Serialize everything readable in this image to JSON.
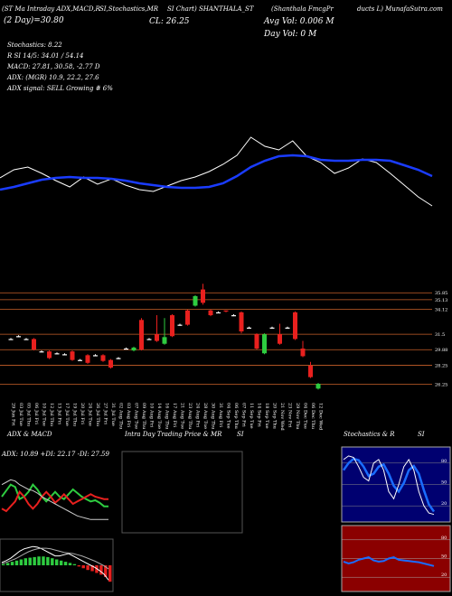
{
  "header": {
    "lines": [
      "(ST Ma Intraday ADX,MACD,R",
      "SI,Stochastics,MR",
      "SI Chart) SHANTHALA_ST",
      "(Shanthala FmcgPr",
      "ducts L) MunafaSutra.com"
    ],
    "close": "CL: 26.25",
    "two_day": "(2 Day)=30.80",
    "avg_vol": "Avg Vol: 0.006  M",
    "day_vol": "Day Vol: 0  M",
    "stats": [
      "Stochastics: 8.22",
      "R    SI 14/5: 34.01 / 54.14",
      "MACD: 27.81, 30.58, -2.77 D",
      "ADX:           (MGR) 10.9, 22.2, 27.6",
      "ADX  signal: SELL Growing # 6%"
    ]
  },
  "ma_chart": {
    "ylim": [
      26,
      37
    ],
    "white": [
      30.73,
      31.72,
      32.05,
      31.28,
      30.4,
      29.63,
      30.84,
      29.96,
      30.62,
      29.85,
      29.3,
      29.08,
      29.74,
      30.4,
      30.84,
      31.5,
      32.38,
      33.48,
      35.68,
      34.58,
      34.14,
      35.24,
      33.37,
      32.6,
      31.28,
      31.94,
      33.04,
      32.6,
      31.28,
      29.85,
      28.42,
      27.32
    ],
    "blue": [
      29.3,
      29.63,
      30.07,
      30.51,
      30.73,
      30.84,
      30.73,
      30.73,
      30.62,
      30.4,
      30.07,
      29.85,
      29.63,
      29.52,
      29.52,
      29.63,
      30.07,
      30.95,
      32.05,
      32.82,
      33.37,
      33.48,
      33.37,
      32.93,
      32.82,
      32.82,
      32.93,
      32.93,
      32.82,
      32.27,
      31.72,
      30.95
    ]
  },
  "candles": {
    "ylim": [
      24.5,
      37.2
    ],
    "levels": [
      {
        "value": 35.85,
        "label": "35.85"
      },
      {
        "value": 35.13,
        "label": "35.13"
      },
      34.12,
      31.5,
      29.88,
      28.25,
      26.25
    ],
    "open": [
      31.0,
      31.3,
      31.0,
      31.0,
      29.7,
      29.7,
      29.5,
      29.4,
      29.7,
      28.8,
      29.3,
      29.3,
      29.3,
      28.8,
      29.0,
      30.0,
      29.8,
      33.0,
      31.0,
      31.5,
      30.5,
      33.5,
      32.5,
      34.0,
      34.5,
      36.2,
      34.0,
      33.8,
      34.0,
      33.5,
      33.8,
      32.2,
      31.5,
      29.5,
      32.2,
      31.5,
      32.2,
      33.8,
      30.0,
      28.2,
      25.8
    ],
    "high": [
      31.1,
      31.4,
      31.1,
      31.1,
      29.8,
      29.8,
      29.6,
      29.5,
      29.8,
      28.9,
      29.4,
      29.4,
      29.4,
      28.9,
      29.1,
      30.1,
      30.2,
      33.2,
      31.1,
      33.5,
      33.2,
      33.6,
      32.6,
      34.1,
      35.6,
      36.8,
      34.1,
      33.9,
      34.0,
      33.6,
      33.9,
      32.3,
      31.6,
      31.6,
      32.3,
      32.6,
      32.3,
      33.9,
      30.8,
      28.6,
      26.4
    ],
    "low": [
      30.9,
      31.2,
      30.9,
      29.8,
      29.6,
      28.9,
      29.4,
      29.3,
      28.7,
      28.7,
      28.4,
      29.2,
      28.6,
      27.9,
      28.9,
      29.9,
      29.7,
      29.8,
      30.9,
      30.7,
      30.4,
      31.2,
      32.4,
      32.4,
      34.4,
      34.6,
      33.4,
      33.7,
      33.8,
      33.4,
      31.6,
      32.1,
      29.9,
      29.4,
      32.1,
      30.4,
      32.1,
      30.9,
      29.1,
      26.9,
      25.7
    ],
    "close": [
      31.0,
      31.3,
      31.0,
      29.9,
      29.7,
      29.0,
      29.5,
      29.4,
      28.8,
      28.8,
      28.5,
      29.3,
      28.7,
      28.0,
      29.0,
      30.0,
      30.1,
      29.9,
      31.0,
      30.8,
      31.2,
      31.3,
      32.5,
      32.5,
      35.5,
      34.8,
      33.5,
      33.8,
      33.9,
      33.5,
      31.8,
      32.2,
      30.0,
      31.5,
      32.2,
      30.5,
      32.2,
      31.0,
      29.2,
      27.0,
      26.3
    ],
    "dates": [
      "29 Jun Fri",
      "03 Jul Tue",
      "05 Jul Thu",
      "06 Jul Fri",
      "10 Jul Tue",
      "12 Jul Thu",
      "13 Jul Fri",
      "17 Jul Tue",
      "19 Jul Thu",
      "20 Jul Fri",
      "24 Jul Tue",
      "26 Jul Thu",
      "27 Jul Fri",
      "31 Jul Tue",
      "02 Aug Thu",
      "03 Aug Fri",
      "07 Aug Tue",
      "09 Aug Thu",
      "10 Aug Fri",
      "14 Aug Tue",
      "16 Aug Thu",
      "17 Aug Fri",
      "21 Aug Tue",
      "23 Aug Thu",
      "24 Aug Fri",
      "28 Aug Tue",
      "30 Aug Thu",
      "31 Aug Fri",
      "04 Sep Tue",
      "06 Sep Thu",
      "07 Sep Fri",
      "11 Sep Tue",
      "14 Sep Fri",
      "18 Sep Tue",
      "20 Sep Thu",
      "21 Nov Wed",
      "23 Nov Fri",
      "29 Nov Thu",
      "04 Dec Tue",
      "06 Dec Thu",
      "12 Dec Wed"
    ]
  },
  "adx": {
    "title": "ADX  & MACD",
    "label": "ADX: 10.89  +DI: 22.17  -DI: 27.59",
    "ylim": [
      0,
      60
    ],
    "plus_di": [
      30,
      35,
      40,
      38,
      28,
      30,
      34,
      40,
      36,
      30,
      26,
      30,
      34,
      30,
      28,
      32,
      36,
      33,
      30,
      28,
      26,
      27,
      25,
      22,
      22
    ],
    "minus_di": [
      20,
      18,
      22,
      26,
      34,
      30,
      24,
      20,
      24,
      30,
      34,
      30,
      25,
      28,
      32,
      28,
      24,
      26,
      28,
      30,
      32,
      30,
      29,
      28,
      28
    ],
    "adx": [
      40,
      42,
      44,
      43,
      40,
      38,
      36,
      35,
      33,
      30,
      28,
      26,
      24,
      22,
      20,
      18,
      16,
      14,
      13,
      12,
      11,
      11,
      11,
      11,
      11
    ]
  },
  "macd": {
    "ylim": [
      -4,
      4
    ],
    "hist": [
      0.2,
      0.4,
      0.6,
      0.8,
      1.0,
      1.2,
      1.3,
      1.4,
      1.5,
      1.5,
      1.4,
      1.2,
      1.0,
      0.8,
      0.6,
      0.4,
      0.2,
      -0.2,
      -0.5,
      -0.8,
      -1.0,
      -1.3,
      -1.6,
      -2.0,
      -2.8
    ],
    "macd": [
      0.5,
      0.8,
      1.2,
      1.8,
      2.4,
      2.8,
      3.0,
      3.2,
      3.1,
      2.8,
      2.4,
      2.0,
      1.6,
      1.6,
      1.8,
      2.0,
      1.6,
      1.2,
      0.8,
      0.4,
      0.0,
      -0.4,
      -0.9,
      -1.5,
      -2.5
    ],
    "signal": [
      0.3,
      0.5,
      0.8,
      1.1,
      1.5,
      1.9,
      2.3,
      2.6,
      2.8,
      2.9,
      2.9,
      2.8,
      2.6,
      2.4,
      2.2,
      2.1,
      2.0,
      1.8,
      1.6,
      1.3,
      1.0,
      0.7,
      0.3,
      -0.1,
      -0.6
    ]
  },
  "middle": {
    "title": "Intra  Day Trading Price  & MR",
    "title2": "SI"
  },
  "stoch": {
    "title": "Stochastics  & R",
    "title2": "SI",
    "ylim": [
      0,
      100
    ],
    "ticks": [
      80,
      50,
      20
    ],
    "k": [
      85,
      90,
      88,
      75,
      60,
      55,
      80,
      85,
      70,
      40,
      30,
      50,
      75,
      85,
      70,
      40,
      20,
      10,
      8
    ],
    "d": [
      70,
      80,
      86,
      84,
      75,
      62,
      65,
      75,
      78,
      65,
      48,
      40,
      52,
      70,
      76,
      65,
      42,
      22,
      12
    ]
  },
  "rsi": {
    "ylim": [
      0,
      100
    ],
    "ticks": [
      80,
      50,
      20
    ],
    "values": [
      45,
      42,
      44,
      48,
      50,
      52,
      47,
      45,
      46,
      50,
      52,
      48,
      47,
      46,
      45,
      44,
      42,
      40,
      38
    ]
  }
}
